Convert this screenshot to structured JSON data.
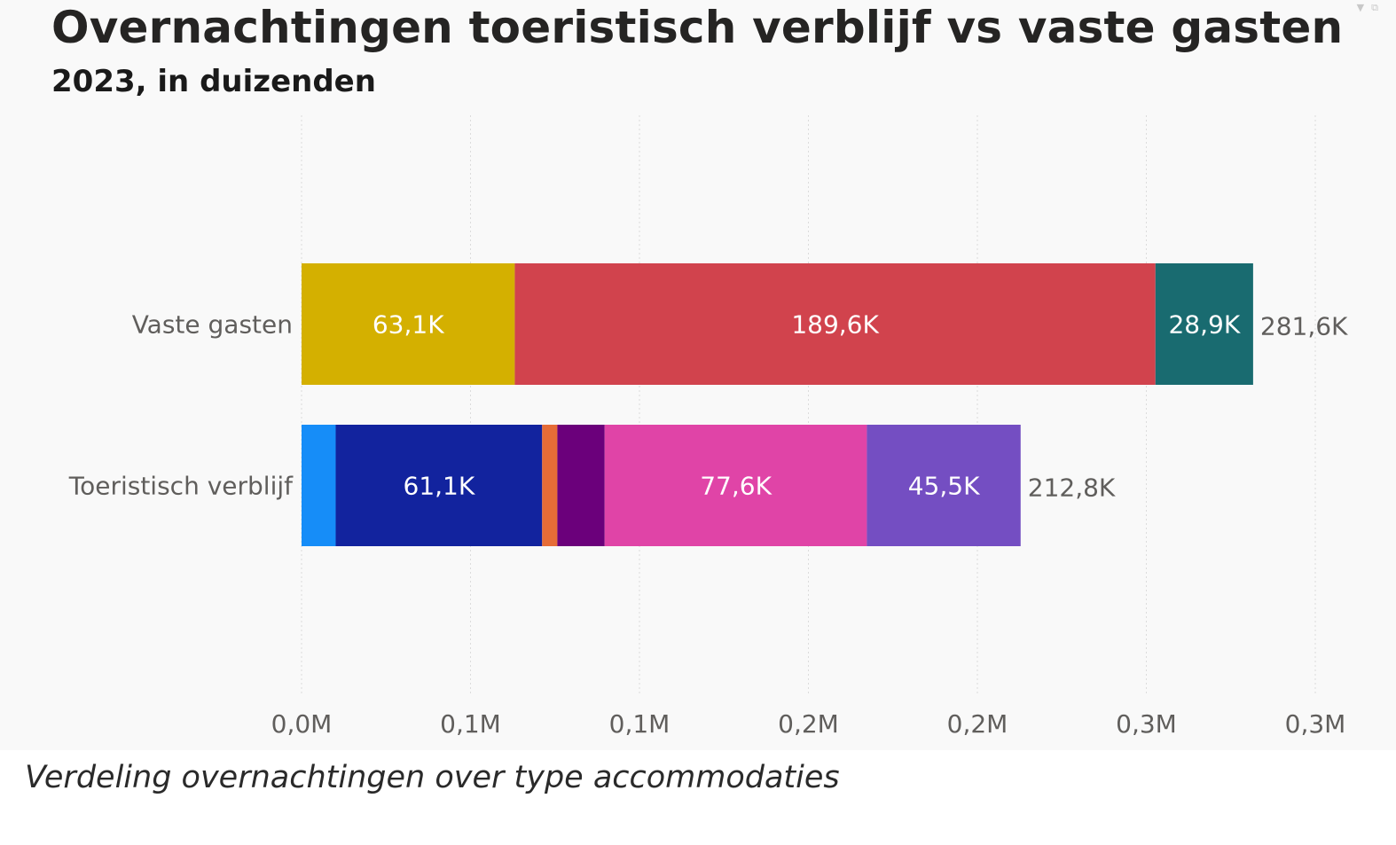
{
  "title": "Overnachtingen toeristisch verblijf vs vaste gasten",
  "subtitle": "2023, in duizenden",
  "caption": "Verdeling overnachtingen over type accommodaties",
  "icons": [
    "filter-icon",
    "focus-mode-icon"
  ],
  "chart_data": {
    "type": "bar",
    "orientation": "horizontal",
    "stacked": true,
    "categories": [
      "Vaste gasten",
      "Toeristisch verblijf"
    ],
    "x_ticks": [
      "0,0M",
      "0,1M",
      "0,1M",
      "0,2M",
      "0,2M",
      "0,3M",
      "0,3M"
    ],
    "x_tick_values": [
      0,
      50,
      100,
      150,
      200,
      250,
      300
    ],
    "xlim": [
      0,
      300
    ],
    "grid": true,
    "legend": "none",
    "unit": "K",
    "series": [
      {
        "color": "#D4B000",
        "values": [
          63.1,
          null
        ],
        "labels": [
          "63,1K",
          ""
        ]
      },
      {
        "color": "#D1434D",
        "values": [
          189.6,
          null
        ],
        "labels": [
          "189,6K",
          ""
        ]
      },
      {
        "color": "#196B70",
        "values": [
          28.9,
          null
        ],
        "labels": [
          "28,9K",
          ""
        ]
      },
      {
        "color": "#168DF8",
        "values": [
          null,
          10.1
        ],
        "labels": [
          "",
          ""
        ]
      },
      {
        "color": "#12239E",
        "values": [
          null,
          61.1
        ],
        "labels": [
          "",
          "61,1K"
        ]
      },
      {
        "color": "#E66C37",
        "values": [
          null,
          4.5
        ],
        "labels": [
          "",
          ""
        ]
      },
      {
        "color": "#6B007B",
        "values": [
          null,
          14.0
        ],
        "labels": [
          "",
          ""
        ]
      },
      {
        "color": "#E044A7",
        "values": [
          null,
          77.6
        ],
        "labels": [
          "",
          "77,6K"
        ]
      },
      {
        "color": "#744EC2",
        "values": [
          null,
          45.5
        ],
        "labels": [
          "",
          "45,5K"
        ]
      }
    ],
    "totals": [
      {
        "value": 281.6,
        "label": "281,6K"
      },
      {
        "value": 212.8,
        "label": "212,8K"
      }
    ]
  }
}
